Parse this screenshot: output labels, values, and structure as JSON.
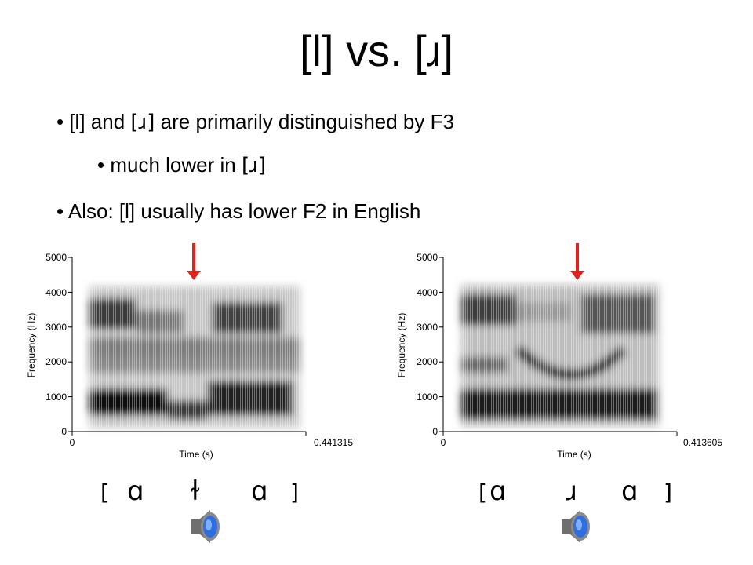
{
  "title": "[l] vs. [ɹ]",
  "bullets": [
    {
      "text_a": "• [l] and ",
      "ipa": "[ɹ]",
      "text_b": " are primarily distinguished by F3"
    },
    {
      "text_a": "• much lower in ",
      "ipa": "[ɹ]",
      "text_b": ""
    },
    {
      "text_a": "• Also: [l] usually has lower F2 in English",
      "ipa": "",
      "text_b": ""
    }
  ],
  "colors": {
    "arrow": "#e0231e",
    "speaker_body": "#6f6f6f",
    "speaker_cone": "#2f6ee0"
  },
  "spectrograms": [
    {
      "ylabel": "Frequency (Hz)",
      "yticks": [
        "0",
        "1000",
        "2000",
        "3000",
        "4000",
        "5000"
      ],
      "xlabel": "Time (s)",
      "xstart": "0",
      "xend": "0.441315",
      "transcription": {
        "open": "[",
        "sym1": "ɑ",
        "sym2": "ɫ",
        "sym3": "ɑ",
        "close": "]"
      },
      "arrow_icon": "down-arrow-icon",
      "audio_icon": "speaker-icon"
    },
    {
      "ylabel": "Frequency (Hz)",
      "yticks": [
        "0",
        "1000",
        "2000",
        "3000",
        "4000",
        "5000"
      ],
      "xlabel": "Time (s)",
      "xstart": "0",
      "xend": "0.413605",
      "transcription": {
        "open": "[",
        "sym1": "ɑ",
        "sym2": "ɹ",
        "sym3": "ɑ",
        "close": "]"
      },
      "arrow_icon": "down-arrow-icon",
      "audio_icon": "speaker-icon"
    }
  ]
}
